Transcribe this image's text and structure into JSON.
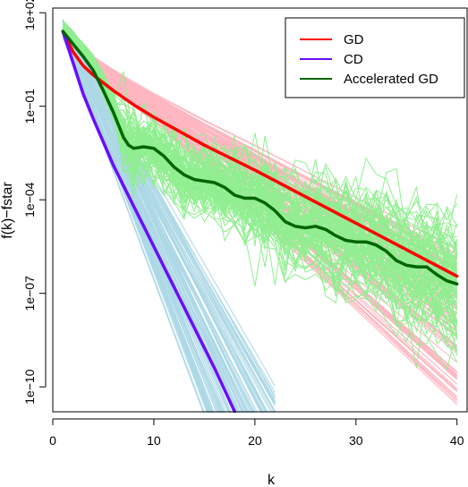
{
  "chart_data": {
    "type": "line",
    "title": "",
    "xlabel": "k",
    "ylabel": "f(k)−fstar",
    "y_scale": "log",
    "xlim": [
      0,
      41
    ],
    "ylim_log10": [
      -10.8,
      2.15
    ],
    "x_ticks": [
      0,
      10,
      20,
      30,
      40
    ],
    "x_tick_labels": [
      "0",
      "10",
      "20",
      "30",
      "40"
    ],
    "y_ticks_log10": [
      2,
      -1,
      -4,
      -7,
      -10
    ],
    "y_tick_labels": [
      "1e+02",
      "1e−01",
      "1e−04",
      "1e−07",
      "1e−10"
    ],
    "grid": false,
    "legend": {
      "placement": "top-right",
      "entries": [
        {
          "label": "GD",
          "color": "#ff0000"
        },
        {
          "label": "CD",
          "color": "#6a0dff"
        },
        {
          "label": "Accelerated GD",
          "color": "#006400"
        }
      ]
    },
    "background_colors": {
      "GD": "#ffb6c1",
      "CD": "#add8e6",
      "Accelerated GD": "#90ee90"
    },
    "background_runs_per_method": 100,
    "series": [
      {
        "name": "GD",
        "color": "#ff0000",
        "x": [
          1,
          2,
          3,
          4,
          6,
          8,
          10,
          15,
          20,
          25,
          30,
          35,
          40
        ],
        "log10_y": [
          1.4,
          0.75,
          0.3,
          0.0,
          -0.5,
          -0.95,
          -1.35,
          -2.25,
          -3.05,
          -3.9,
          -4.75,
          -5.6,
          -6.45
        ]
      },
      {
        "name": "CD",
        "color": "#6a0dff",
        "x": [
          1,
          2,
          3,
          4,
          6,
          8,
          10,
          12,
          14,
          16,
          18
        ],
        "log10_y": [
          1.4,
          0.4,
          -0.6,
          -1.4,
          -2.9,
          -4.2,
          -5.5,
          -6.8,
          -8.1,
          -9.4,
          -10.8
        ]
      },
      {
        "name": "Accelerated GD",
        "color": "#006400",
        "x": [
          1,
          2,
          3,
          4,
          5,
          6,
          7,
          7.5,
          8,
          9,
          10,
          11,
          12,
          13,
          14,
          15,
          16,
          17,
          18,
          19,
          20,
          21,
          22,
          23,
          24,
          25,
          26,
          27,
          28,
          29,
          30,
          31,
          32,
          33,
          34,
          35,
          36,
          37,
          38,
          39,
          40
        ],
        "log10_y": [
          1.4,
          1.0,
          0.6,
          0.15,
          -0.5,
          -1.2,
          -2.0,
          -2.25,
          -2.35,
          -2.3,
          -2.35,
          -2.6,
          -2.95,
          -3.2,
          -3.35,
          -3.4,
          -3.45,
          -3.6,
          -3.85,
          -3.95,
          -3.95,
          -4.1,
          -4.35,
          -4.7,
          -4.85,
          -4.9,
          -4.85,
          -4.95,
          -5.15,
          -5.3,
          -5.35,
          -5.35,
          -5.45,
          -5.65,
          -5.95,
          -6.1,
          -6.15,
          -6.15,
          -6.4,
          -6.6,
          -6.7
        ]
      }
    ]
  }
}
